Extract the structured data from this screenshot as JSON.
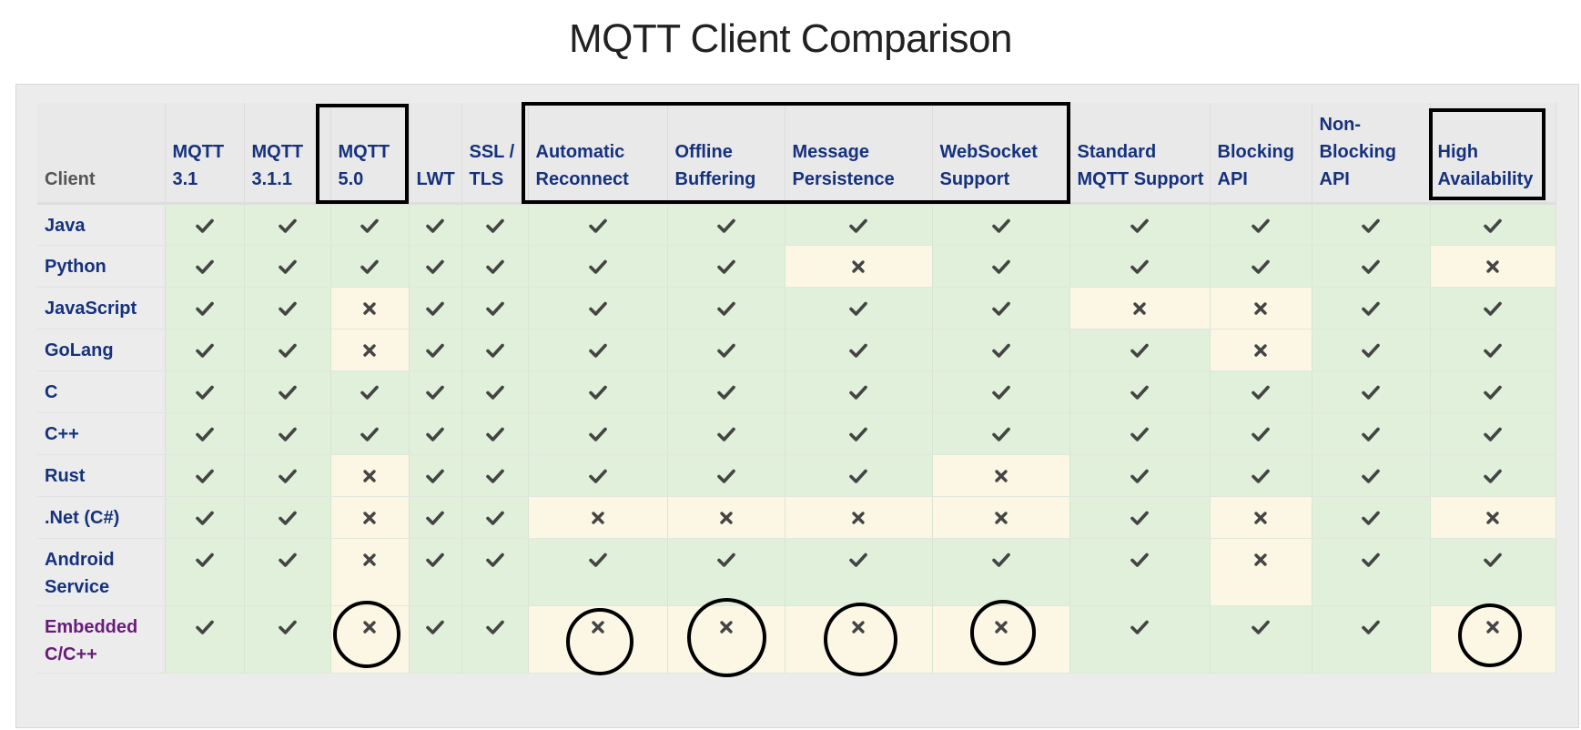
{
  "title": "MQTT Client Comparison",
  "headers": [
    "Client",
    "MQTT 3.1",
    "MQTT 3.1.1",
    "MQTT 5.0",
    "LWT",
    "SSL / TLS",
    "Automatic Reconnect",
    "Offline Buffering",
    "Message Persistence",
    "WebSocket Support",
    "Standard MQTT Support",
    "Blocking API",
    "Non-Blocking API",
    "High Availability"
  ],
  "rows": [
    {
      "client": "Java",
      "support": [
        true,
        true,
        true,
        true,
        true,
        true,
        true,
        true,
        true,
        true,
        true,
        true,
        true
      ]
    },
    {
      "client": "Python",
      "support": [
        true,
        true,
        true,
        true,
        true,
        true,
        true,
        false,
        true,
        true,
        true,
        true,
        false
      ]
    },
    {
      "client": "JavaScript",
      "support": [
        true,
        true,
        false,
        true,
        true,
        true,
        true,
        true,
        true,
        false,
        false,
        true,
        true
      ]
    },
    {
      "client": "GoLang",
      "support": [
        true,
        true,
        false,
        true,
        true,
        true,
        true,
        true,
        true,
        true,
        false,
        true,
        true
      ]
    },
    {
      "client": "C",
      "support": [
        true,
        true,
        true,
        true,
        true,
        true,
        true,
        true,
        true,
        true,
        true,
        true,
        true
      ]
    },
    {
      "client": "C++",
      "support": [
        true,
        true,
        true,
        true,
        true,
        true,
        true,
        true,
        true,
        true,
        true,
        true,
        true
      ]
    },
    {
      "client": "Rust",
      "support": [
        true,
        true,
        false,
        true,
        true,
        true,
        true,
        true,
        false,
        true,
        true,
        true,
        true
      ]
    },
    {
      "client": ".Net (C#)",
      "support": [
        true,
        true,
        false,
        true,
        true,
        false,
        false,
        false,
        false,
        true,
        false,
        true,
        false
      ]
    },
    {
      "client": "Android Service",
      "support": [
        true,
        true,
        false,
        true,
        true,
        true,
        true,
        true,
        true,
        true,
        false,
        true,
        true
      ]
    },
    {
      "client": "Embedded C/C++",
      "support": [
        true,
        true,
        false,
        true,
        true,
        false,
        false,
        false,
        false,
        true,
        true,
        true,
        false
      ],
      "visited": true
    }
  ],
  "icons": {
    "yes": "check-icon",
    "no": "cross-icon"
  },
  "colors": {
    "supported_bg": "#e0f0da",
    "unsupported_bg": "#fcf7e5",
    "link": "#16327e",
    "visited_link": "#6a1b7a",
    "annotation": "#000000"
  },
  "annotations": {
    "boxed_headers": [
      "MQTT 5.0",
      "Automatic Reconnect",
      "Offline Buffering",
      "Message Persistence",
      "WebSocket Support",
      "High Availability"
    ],
    "circled_row": "Embedded C/C++",
    "circled_columns": [
      "MQTT 5.0",
      "Automatic Reconnect",
      "Offline Buffering",
      "Message Persistence",
      "WebSocket Support",
      "High Availability"
    ]
  }
}
